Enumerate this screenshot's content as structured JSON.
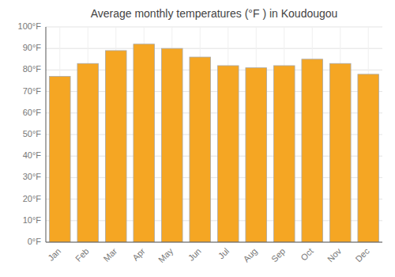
{
  "chart_data": {
    "type": "bar",
    "title": "Average monthly temperatures (°F ) in Koudougou",
    "categories": [
      "Jan",
      "Feb",
      "Mar",
      "Apr",
      "May",
      "Jun",
      "Jul",
      "Aug",
      "Sep",
      "Oct",
      "Nov",
      "Dec"
    ],
    "values": [
      77,
      83,
      89,
      92,
      90,
      86,
      82,
      81,
      82,
      85,
      83,
      78
    ],
    "color": "#F5A623",
    "ylim": [
      0,
      100
    ],
    "yticks": [
      {
        "value": 0,
        "label": "0°F"
      },
      {
        "value": 10,
        "label": "10°F"
      },
      {
        "value": 20,
        "label": "20°F"
      },
      {
        "value": 30,
        "label": "30°F"
      },
      {
        "value": 40,
        "label": "40°F"
      },
      {
        "value": 50,
        "label": "50°F"
      },
      {
        "value": 60,
        "label": "60°F"
      },
      {
        "value": 70,
        "label": "70°F"
      },
      {
        "value": 80,
        "label": "80°F"
      },
      {
        "value": 90,
        "label": "90°F"
      },
      {
        "value": 100,
        "label": "100°F"
      }
    ],
    "grid": true
  }
}
